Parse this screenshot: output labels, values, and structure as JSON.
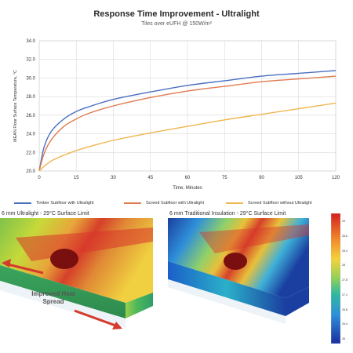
{
  "chart_data": {
    "type": "line",
    "title": "Response Time Improvement - Ultralight",
    "subtitle": "Tiles over eUFH @ 150W/m²",
    "xlabel": "Time, Minutes",
    "ylabel": "MEAN Floor Surface Temperature, °C",
    "xlim": [
      0,
      120
    ],
    "ylim": [
      20,
      34
    ],
    "xticks": [
      "0",
      "15",
      "30",
      "45",
      "60",
      "75",
      "90",
      "105",
      "120"
    ],
    "yticks": [
      "20.0",
      "22.0",
      "24.0",
      "26.0",
      "28.0",
      "30.0",
      "32.0",
      "34.0"
    ],
    "grid": true,
    "legend_position": "bottom",
    "x": [
      0,
      2,
      5,
      10,
      15,
      20,
      30,
      45,
      60,
      75,
      90,
      105,
      120
    ],
    "series": [
      {
        "name": "Timber Subfloor with Ultralight",
        "color": "#4a6fc1",
        "values": [
          20.0,
          22.6,
          24.3,
          25.6,
          26.4,
          26.9,
          27.7,
          28.5,
          29.2,
          29.7,
          30.2,
          30.5,
          30.8
        ]
      },
      {
        "name": "Screed Subfloor with Ultralight",
        "color": "#e07b4f",
        "values": [
          20.0,
          21.9,
          23.4,
          24.8,
          25.6,
          26.2,
          27.0,
          27.9,
          28.6,
          29.1,
          29.6,
          29.9,
          30.2
        ]
      },
      {
        "name": "Screed Subfloor without Ultralight",
        "color": "#f0b650",
        "values": [
          20.0,
          20.5,
          21.1,
          21.7,
          22.2,
          22.6,
          23.3,
          24.1,
          24.8,
          25.5,
          26.1,
          26.7,
          27.3
        ]
      }
    ]
  },
  "panels": {
    "left_label": "6 mm Ultralight - 29°C Surface Limit",
    "right_label": "6 mm Traditional Insulation - 29°C Surface Limit",
    "annotation": "Improved Heat Spread"
  },
  "colorbar": {
    "ticks": [
      "29",
      "28.6",
      "28.4",
      "28",
      "27.8",
      "27.2",
      "26.8",
      "26.4",
      "26"
    ]
  }
}
